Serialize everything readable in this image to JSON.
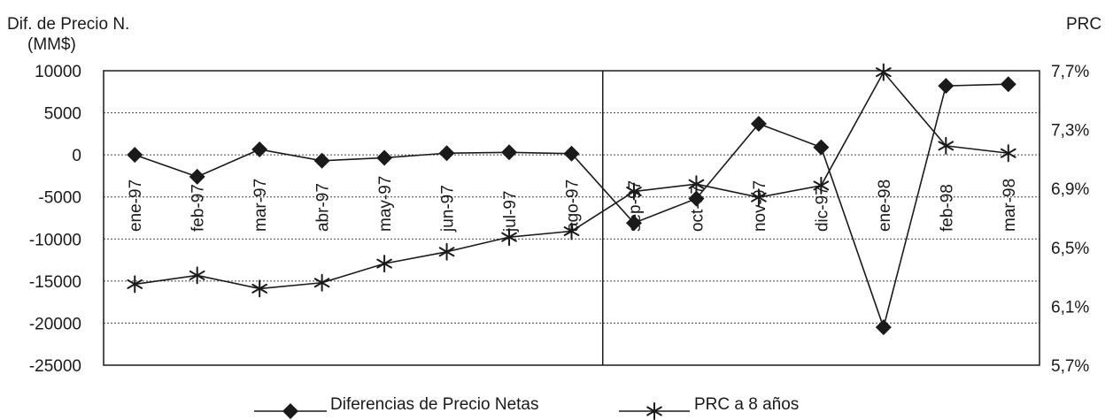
{
  "chart_data": {
    "type": "line",
    "categories": [
      "ene-97",
      "feb-97",
      "mar-97",
      "abr-97",
      "may-97",
      "jun-97",
      "jul-97",
      "ago-97",
      "sep-97",
      "oct-97",
      "nov-97",
      "dic-97",
      "ene-98",
      "feb-98",
      "mar-98"
    ],
    "ylabel_left_line1": "Dif. de Precio N.",
    "ylabel_left_line2": "(MM$)",
    "ylabel_right": "PRC",
    "y_left_ticks": [
      "10000",
      "5000",
      "0",
      "-5000",
      "-10000",
      "-15000",
      "-20000",
      "-25000"
    ],
    "y_left_range": [
      -25000,
      10000
    ],
    "y_right_ticks": [
      "7,7%",
      "7,3%",
      "6,9%",
      "6,5%",
      "6,1%",
      "5,7%"
    ],
    "y_right_range": [
      5.7,
      7.7
    ],
    "grid": "horizontal dotted",
    "legend_position": "bottom",
    "divider_after": "ago-97",
    "series": [
      {
        "name": "Diferencias de Precio Netas",
        "axis": "left",
        "marker": "diamond",
        "values": [
          0,
          -2600,
          650,
          -700,
          -350,
          200,
          300,
          150,
          -8100,
          -5200,
          3700,
          900,
          -20500,
          8200,
          8400
        ]
      },
      {
        "name": "PRC a 8 años",
        "axis": "right",
        "marker": "asterisk",
        "values": [
          6.25,
          6.31,
          6.22,
          6.26,
          6.39,
          6.47,
          6.57,
          6.61,
          6.88,
          6.93,
          6.84,
          6.92,
          7.69,
          7.19,
          7.14
        ]
      }
    ]
  }
}
